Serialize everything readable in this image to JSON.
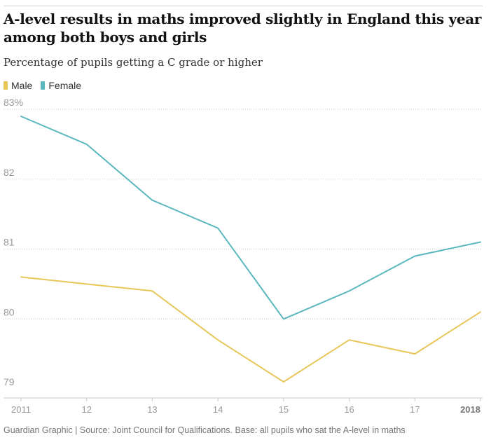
{
  "header": {
    "title": "A-level results in maths improved slightly in England this year among both boys and girls",
    "subtitle": "Percentage of pupils getting a C grade or higher"
  },
  "footer": {
    "source": "Guardian Graphic | Source: Joint Council for Qualifications. Base: all pupils who sat the A-level in maths"
  },
  "colors": {
    "male": "#e8c75a",
    "female": "#5bb8bf",
    "grid": "#cccccc",
    "tick_text": "#999999"
  },
  "chart_data": {
    "type": "line",
    "title": "A-level results in maths improved slightly in England this year among both boys and girls",
    "subtitle": "Percentage of pupils getting a C grade or higher",
    "x": [
      2011,
      2012,
      2013,
      2014,
      2015,
      2016,
      2017,
      2018
    ],
    "x_tick_labels": [
      "2011",
      "12",
      "13",
      "14",
      "15",
      "16",
      "17",
      "2018"
    ],
    "y_tick_values": [
      83,
      82,
      81,
      80,
      79
    ],
    "y_tick_labels": [
      "83%",
      "82",
      "81",
      "80",
      "79"
    ],
    "ylim": [
      79,
      83
    ],
    "legend_position": "top-left",
    "grid": "horizontal-dotted",
    "series": [
      {
        "name": "Male",
        "values": [
          80.6,
          80.5,
          80.4,
          79.7,
          79.1,
          79.7,
          79.5,
          80.1
        ]
      },
      {
        "name": "Female",
        "values": [
          82.9,
          82.5,
          81.7,
          81.3,
          80.0,
          80.4,
          80.9,
          81.1
        ]
      }
    ]
  }
}
